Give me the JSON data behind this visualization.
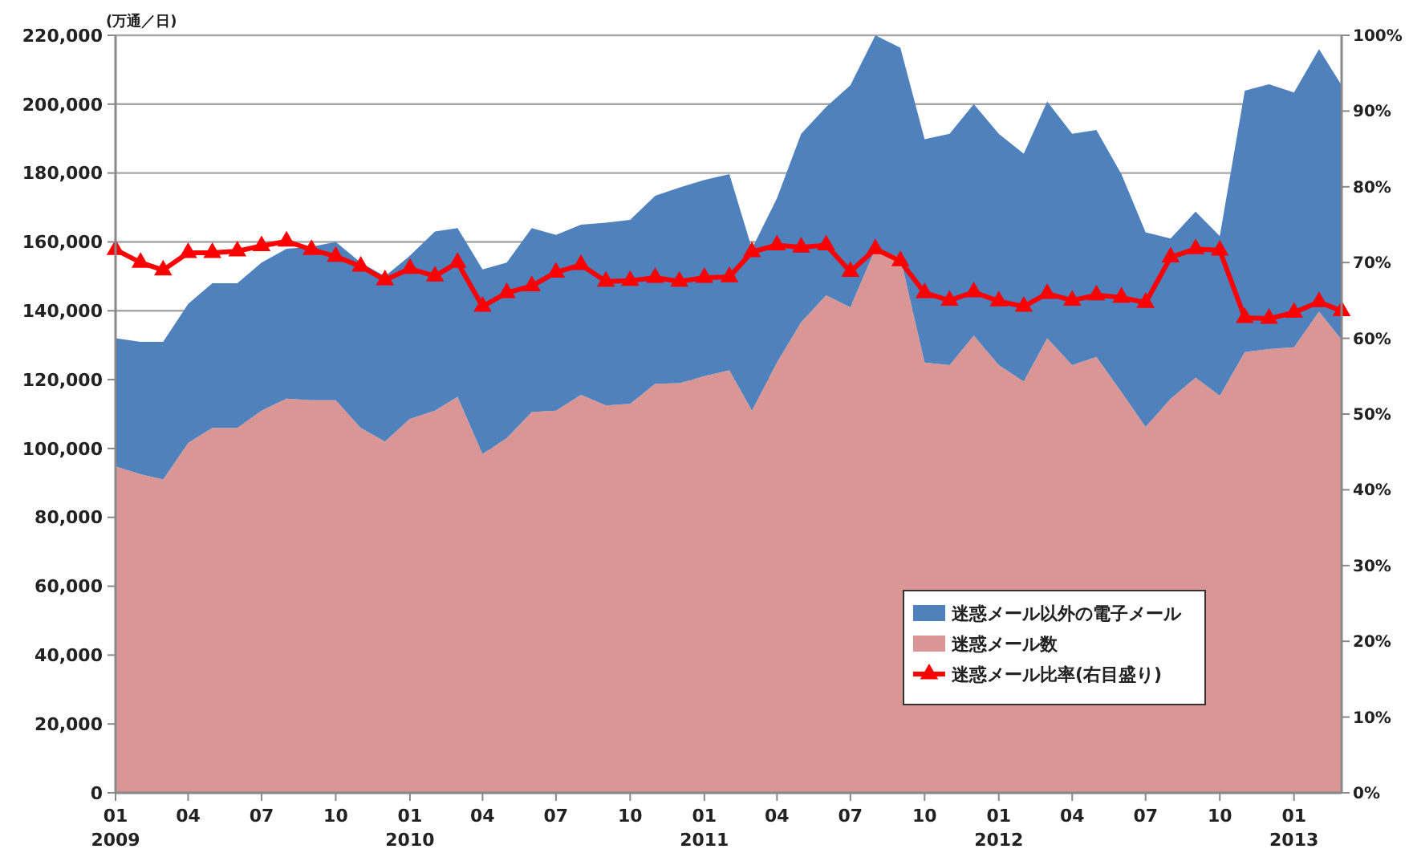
{
  "chart_data": {
    "type": "area",
    "stacked": true,
    "ylabel": "(万通／日)",
    "x": [
      "2009-01",
      "2009-02",
      "2009-03",
      "2009-04",
      "2009-05",
      "2009-06",
      "2009-07",
      "2009-08",
      "2009-09",
      "2009-10",
      "2009-11",
      "2009-12",
      "2010-01",
      "2010-02",
      "2010-03",
      "2010-04",
      "2010-05",
      "2010-06",
      "2010-07",
      "2010-08",
      "2010-09",
      "2010-10",
      "2010-11",
      "2010-12",
      "2011-01",
      "2011-02",
      "2011-03",
      "2011-04",
      "2011-05",
      "2011-06",
      "2011-07",
      "2011-08",
      "2011-09",
      "2011-10",
      "2011-11",
      "2011-12",
      "2012-01",
      "2012-02",
      "2012-03",
      "2012-04",
      "2012-05",
      "2012-06",
      "2012-07",
      "2012-08",
      "2012-09",
      "2012-10",
      "2012-11",
      "2012-12",
      "2013-01",
      "2013-02",
      "2013-03"
    ],
    "series": [
      {
        "name": "迷惑メール数",
        "color": "#d99694",
        "values": [
          94800,
          92500,
          91000,
          101600,
          106000,
          106000,
          111000,
          114500,
          114000,
          114000,
          106000,
          102000,
          108600,
          111000,
          115000,
          98400,
          103000,
          110600,
          111000,
          115600,
          112500,
          113000,
          118800,
          119000,
          121000,
          122700,
          111000,
          125000,
          136700,
          144500,
          141000,
          158000,
          155500,
          125000,
          124200,
          132800,
          124200,
          119500,
          132000,
          124200,
          126600,
          116400,
          106300,
          114400,
          120600,
          115300,
          128000,
          128900,
          129400,
          139800,
          131600
        ]
      },
      {
        "name": "迷惑メール以外の電子メール",
        "color": "#4f81bd",
        "values": [
          37200,
          38500,
          40000,
          40400,
          42000,
          42000,
          43000,
          43500,
          44600,
          46000,
          48000,
          48000,
          47400,
          52000,
          49000,
          53600,
          51000,
          53400,
          51000,
          49400,
          53100,
          53400,
          54600,
          56800,
          57000,
          57000,
          47000,
          47700,
          54700,
          54700,
          64500,
          62000,
          60900,
          64800,
          67200,
          67200,
          67200,
          66100,
          68800,
          67200,
          65900,
          63300,
          56500,
          46600,
          48200,
          46400,
          75900,
          76900,
          74000,
          76200,
          73900
        ]
      },
      {
        "name": "迷惑メール比率(右目盛り)",
        "color": "#ff0000",
        "type": "line",
        "axis": "y2",
        "marker": "triangle",
        "values": [
          71.7,
          70,
          69,
          71.3,
          71.3,
          71.5,
          72.2,
          72.8,
          71.7,
          70.8,
          69.5,
          67.7,
          69.2,
          68.2,
          70,
          64.2,
          66,
          66.9,
          68.7,
          69.7,
          67.5,
          67.6,
          68,
          67.5,
          68,
          68.1,
          71.4,
          72.3,
          72,
          72.3,
          68.8,
          71.8,
          70.2,
          66,
          65,
          66.1,
          64.9,
          64.2,
          65.9,
          65,
          65.7,
          65.4,
          64.7,
          70.7,
          71.8,
          71.6,
          62.7,
          62.6,
          63.4,
          64.8,
          63.6
        ]
      }
    ],
    "xlim": [
      "2009-01",
      "2013-03"
    ],
    "xticks": [
      {
        "value": "2009-01",
        "label": "01\n2009"
      },
      {
        "value": "2009-04",
        "label": "04"
      },
      {
        "value": "2009-07",
        "label": "07"
      },
      {
        "value": "2009-10",
        "label": "10"
      },
      {
        "value": "2010-01",
        "label": "01\n2010"
      },
      {
        "value": "2010-04",
        "label": "04"
      },
      {
        "value": "2010-07",
        "label": "07"
      },
      {
        "value": "2010-10",
        "label": "10"
      },
      {
        "value": "2011-01",
        "label": "01\n2011"
      },
      {
        "value": "2011-04",
        "label": "04"
      },
      {
        "value": "2011-07",
        "label": "07"
      },
      {
        "value": "2011-10",
        "label": "10"
      },
      {
        "value": "2012-01",
        "label": "01\n2012"
      },
      {
        "value": "2012-04",
        "label": "04"
      },
      {
        "value": "2012-07",
        "label": "07"
      },
      {
        "value": "2012-10",
        "label": "10"
      },
      {
        "value": "2013-01",
        "label": "01\n2013"
      }
    ],
    "ylim": [
      0,
      220000
    ],
    "yticks": [
      0,
      {
        "value": 20000,
        "label": "20,000"
      },
      {
        "value": 40000,
        "label": "40,000"
      },
      {
        "value": 60000,
        "label": "60,000"
      },
      {
        "value": 80000,
        "label": "80,000"
      },
      {
        "value": 100000,
        "label": "100,000"
      },
      {
        "value": 120000,
        "label": "120,000"
      },
      {
        "value": 140000,
        "label": "140,000"
      },
      {
        "value": 160000,
        "label": "160,000"
      },
      {
        "value": 180000,
        "label": "180,000"
      },
      {
        "value": 200000,
        "label": "200,000"
      },
      {
        "value": 220000,
        "label": "220,000"
      }
    ],
    "y2lim": [
      0,
      100
    ],
    "y2ticks": [
      {
        "value": 0,
        "label": "0%"
      },
      {
        "value": 10,
        "label": "10%"
      },
      {
        "value": 20,
        "label": "20%"
      },
      {
        "value": 30,
        "label": "30%"
      },
      {
        "value": 40,
        "label": "40%"
      },
      {
        "value": 50,
        "label": "50%"
      },
      {
        "value": 60,
        "label": "60%"
      },
      {
        "value": 70,
        "label": "70%"
      },
      {
        "value": 80,
        "label": "80%"
      },
      {
        "value": 90,
        "label": "90%"
      },
      {
        "value": 100,
        "label": "100%"
      }
    ],
    "grid": "y",
    "legend": "bottom right",
    "line_style": "solid"
  }
}
